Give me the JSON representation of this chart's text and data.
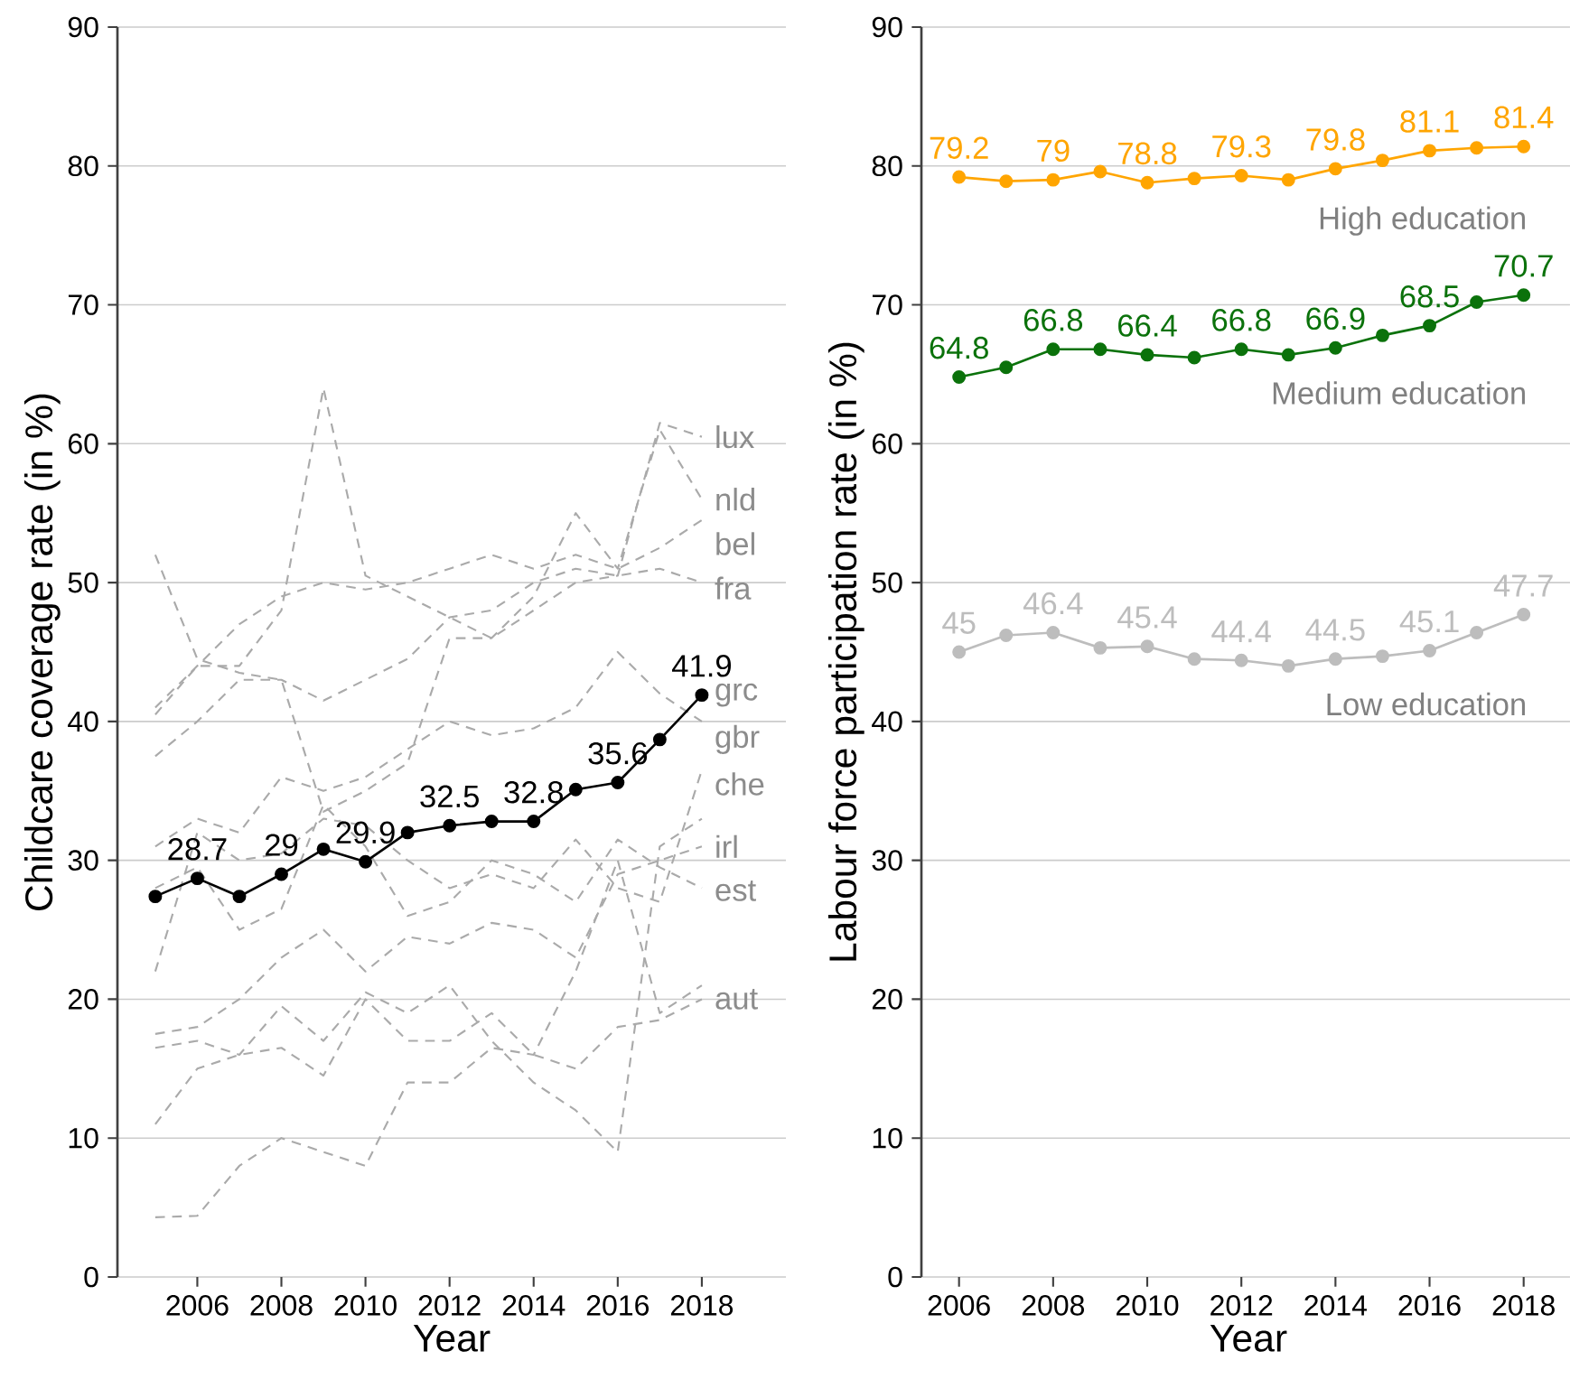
{
  "chart_data": [
    {
      "type": "line",
      "xlabel": "Year",
      "ylabel": "Childcare coverage rate (in %)",
      "x": [
        2005,
        2006,
        2007,
        2008,
        2009,
        2010,
        2011,
        2012,
        2013,
        2014,
        2015,
        2016,
        2017,
        2018
      ],
      "xlim": [
        2004.1,
        2020
      ],
      "ylim": [
        0,
        90
      ],
      "xticks": [
        2006,
        2008,
        2010,
        2012,
        2014,
        2016,
        2018
      ],
      "yticks": [
        0,
        10,
        20,
        30,
        40,
        50,
        60,
        70,
        80,
        90
      ],
      "grid": "y",
      "series": [
        {
          "name": "lux",
          "color": "#aaaaaa",
          "line_style": "dashed",
          "marker": "none",
          "values": [
            40.5,
            44,
            44,
            48,
            64,
            50.5,
            49,
            47.5,
            46,
            48,
            50,
            50.5,
            61.5,
            60.5
          ]
        },
        {
          "name": "nld",
          "color": "#aaaaaa",
          "line_style": "dashed",
          "marker": "none",
          "values": [
            52,
            44.5,
            43.5,
            43,
            33.5,
            35,
            37,
            46,
            46,
            49,
            55,
            51,
            61,
            56
          ]
        },
        {
          "name": "bel",
          "color": "#aaaaaa",
          "line_style": "dashed",
          "marker": "none",
          "values": [
            41,
            44,
            47,
            49,
            50,
            49.5,
            50,
            51,
            52,
            51,
            52,
            51,
            52.5,
            54.5
          ]
        },
        {
          "name": "fra",
          "color": "#aaaaaa",
          "line_style": "dashed",
          "marker": "none",
          "values": [
            37.5,
            40,
            43,
            43,
            41.5,
            43,
            44.5,
            47.5,
            48,
            50,
            51,
            50.5,
            51,
            50
          ]
        },
        {
          "name": "gbr",
          "color": "#aaaaaa",
          "line_style": "dashed",
          "marker": "none",
          "values": [
            31,
            33,
            32,
            36,
            35,
            36,
            38,
            40,
            39,
            39.5,
            41,
            45,
            42,
            40
          ]
        },
        {
          "name": "che",
          "color": "#aaaaaa",
          "line_style": "dashed",
          "marker": "none",
          "values": [
            22,
            32,
            30,
            30.5,
            33,
            32.5,
            30,
            28,
            29,
            28,
            31.5,
            28,
            27,
            36.5
          ]
        },
        {
          "name": "irl",
          "color": "#aaaaaa",
          "line_style": "dashed",
          "marker": "none",
          "values": [
            17.5,
            18,
            20,
            23,
            25,
            22,
            24.5,
            24,
            25.5,
            25,
            23,
            29,
            30,
            31
          ]
        },
        {
          "name": "est",
          "color": "#aaaaaa",
          "line_style": "dashed",
          "marker": "none",
          "values": [
            28,
            29.5,
            25,
            26.5,
            34,
            31,
            26,
            27,
            30,
            29,
            27,
            31.5,
            29.5,
            28
          ]
        },
        {
          "name": "aut",
          "color": "#aaaaaa",
          "line_style": "dashed",
          "marker": "none",
          "values": [
            11,
            15,
            16,
            16.5,
            14.5,
            20,
            17,
            17,
            19,
            16,
            15,
            18,
            18.5,
            20
          ]
        },
        {
          "color": "#aaaaaa",
          "line_style": "dashed",
          "marker": "none",
          "values": [
            4.3,
            4.4,
            8,
            10,
            9,
            8,
            14,
            14,
            16.5,
            16,
            22,
            30,
            19,
            21
          ]
        },
        {
          "color": "#aaaaaa",
          "line_style": "dashed",
          "marker": "none",
          "values": [
            16.5,
            17,
            16,
            19.5,
            17,
            20.5,
            19,
            21,
            17,
            14,
            12,
            9,
            31,
            33
          ]
        },
        {
          "name": "grc",
          "color": "#000000",
          "line_style": "solid",
          "marker": "circle",
          "values": [
            27.4,
            28.7,
            27.4,
            29,
            30.8,
            29.9,
            32.0,
            32.5,
            32.8,
            32.8,
            35.1,
            35.6,
            38.7,
            41.9
          ],
          "value_labels": [
            null,
            "28.7",
            null,
            "29",
            null,
            "29.9",
            null,
            "32.5",
            null,
            "32.8",
            null,
            "35.6",
            null,
            "41.9"
          ]
        }
      ]
    },
    {
      "type": "line",
      "xlabel": "Year",
      "ylabel": "Labour force participation rate (in %)",
      "x": [
        2006,
        2007,
        2008,
        2009,
        2010,
        2011,
        2012,
        2013,
        2014,
        2015,
        2016,
        2017,
        2018
      ],
      "xlim": [
        2005.2,
        2019.1
      ],
      "ylim": [
        0,
        90
      ],
      "xticks": [
        2006,
        2008,
        2010,
        2012,
        2014,
        2016,
        2018
      ],
      "yticks": [
        0,
        10,
        20,
        30,
        40,
        50,
        60,
        70,
        80,
        90
      ],
      "grid": "y",
      "series": [
        {
          "name": "High education",
          "color": "#ffa500",
          "line_style": "solid",
          "marker": "circle",
          "values": [
            79.2,
            78.9,
            79.0,
            79.6,
            78.8,
            79.1,
            79.3,
            79.0,
            79.8,
            80.4,
            81.1,
            81.3,
            81.4
          ],
          "value_labels": [
            "79.2",
            null,
            "79",
            null,
            "78.8",
            null,
            "79.3",
            null,
            "79.8",
            null,
            "81.1",
            null,
            "81.4"
          ]
        },
        {
          "name": "Medium education",
          "color": "#0b720b",
          "line_style": "solid",
          "marker": "circle",
          "values": [
            64.8,
            65.5,
            66.8,
            66.8,
            66.4,
            66.2,
            66.8,
            66.4,
            66.9,
            67.8,
            68.5,
            70.2,
            70.7
          ],
          "value_labels": [
            "64.8",
            null,
            "66.8",
            null,
            "66.4",
            null,
            "66.8",
            null,
            "66.9",
            null,
            "68.5",
            null,
            "70.7"
          ]
        },
        {
          "name": "Low education",
          "color": "#bdbdbd",
          "line_style": "solid",
          "marker": "circle",
          "values": [
            45,
            46.2,
            46.4,
            45.3,
            45.4,
            44.5,
            44.4,
            44.0,
            44.5,
            44.7,
            45.1,
            46.4,
            47.7
          ],
          "value_labels": [
            "45",
            null,
            "46.4",
            null,
            "45.4",
            null,
            "44.4",
            null,
            "44.5",
            null,
            "45.1",
            null,
            "47.7"
          ]
        }
      ]
    }
  ]
}
